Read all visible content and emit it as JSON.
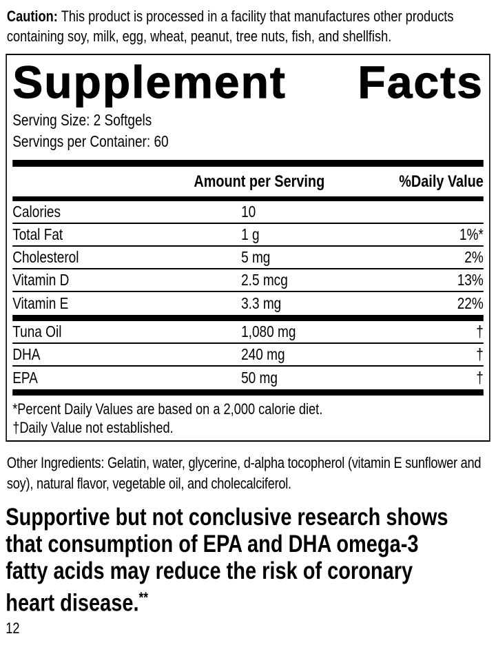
{
  "caution": {
    "label": "Caution:",
    "text": "This product is processed in a facility that manufactures other products containing soy, milk, egg, wheat, peanut, tree nuts, fish, and shellfish."
  },
  "panel": {
    "title_words": [
      "Supplement",
      "Facts"
    ],
    "serving_size": "Serving Size: 2 Softgels",
    "servings_per_container": "Servings per Container: 60",
    "columns": {
      "amount": "Amount per Serving",
      "daily_value": "%Daily Value"
    },
    "rows_main": [
      {
        "name": "Calories",
        "amount": "10",
        "dv": ""
      },
      {
        "name": "Total Fat",
        "amount": "1 g",
        "dv": "1%*"
      },
      {
        "name": "Cholesterol",
        "amount": "5 mg",
        "dv": "2%"
      },
      {
        "name": "Vitamin D",
        "amount": "2.5 mcg",
        "dv": "13%"
      },
      {
        "name": "Vitamin E",
        "amount": "3.3 mg",
        "dv": "22%"
      }
    ],
    "rows_blend": [
      {
        "name": "Tuna Oil",
        "amount": "1,080 mg",
        "dv": "†"
      },
      {
        "name": "DHA",
        "amount": "240 mg",
        "dv": "†"
      },
      {
        "name": "EPA",
        "amount": "50 mg",
        "dv": "†"
      }
    ],
    "footnotes": [
      "*Percent Daily Values are based on a 2,000 calorie diet.",
      "†Daily Value not established."
    ]
  },
  "other_ingredients": "Other Ingredients: Gelatin, water, glycerine, d-alpha tocopherol (vitamin E sunflower and soy), natural flavor, vegetable oil, and cholecalciferol.",
  "claim": {
    "lines": [
      "Supportive but not conclusive research shows",
      "that consumption of EPA and DHA omega-3",
      "fatty acids may reduce the risk of coronary",
      "heart disease."
    ],
    "superscript": "**"
  },
  "page_number": "12",
  "colors": {
    "text": "#000000",
    "background": "#ffffff",
    "bars": "#000000"
  }
}
